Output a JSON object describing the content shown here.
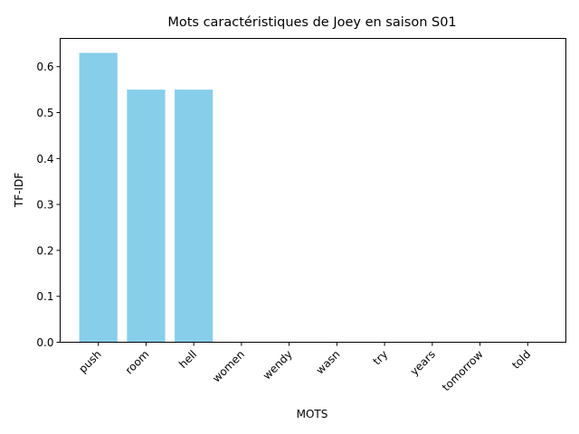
{
  "chart_data": {
    "type": "bar",
    "title": "Mots caractéristiques de Joey en saison S01",
    "xlabel": "MOTS",
    "ylabel": "TF-IDF",
    "categories": [
      "push",
      "room",
      "hell",
      "women",
      "wendy",
      "wasn",
      "try",
      "years",
      "tomorrow",
      "told"
    ],
    "values": [
      0.63,
      0.55,
      0.55,
      0,
      0,
      0,
      0,
      0,
      0,
      0
    ],
    "ylim": [
      0,
      0.6615
    ],
    "yticks": [
      "0.0",
      "0.1",
      "0.2",
      "0.3",
      "0.4",
      "0.5",
      "0.6"
    ],
    "bar_color": "#87ceeb",
    "grid": false,
    "legend": "none"
  }
}
